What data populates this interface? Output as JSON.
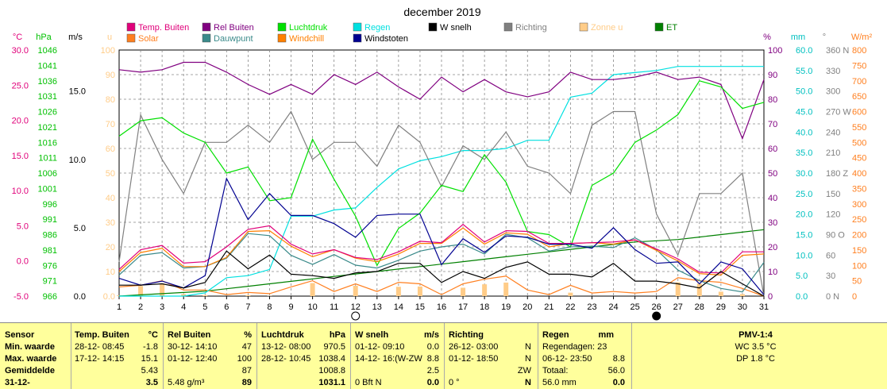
{
  "title": "december 2019",
  "colors": {
    "temp": "#e0007a",
    "rh": "#800080",
    "pressure": "#00e000",
    "rain": "#00e0e0",
    "wind": "#000000",
    "direction": "#808080",
    "sun": "#ffcc88",
    "et": "#008000",
    "solar": "#ff7f1f",
    "dewpoint": "#3a8a8a",
    "windchill": "#ff7f00",
    "gust": "#000090"
  },
  "legend": [
    {
      "label": "Temp. Buiten",
      "color": "#e0007a"
    },
    {
      "label": "Rel Buiten",
      "color": "#800080"
    },
    {
      "label": "Luchtdruk",
      "color": "#00e000"
    },
    {
      "label": "Regen",
      "color": "#00e0e0"
    },
    {
      "label": "W snelh",
      "color": "#000000"
    },
    {
      "label": "Richting",
      "color": "#808080"
    },
    {
      "label": "Zonne u",
      "color": "#ffcc88"
    },
    {
      "label": "ET",
      "color": "#008000"
    },
    {
      "label": "Solar",
      "color": "#ff7f1f"
    },
    {
      "label": "Dauwpunt",
      "color": "#3a8a8a"
    },
    {
      "label": "Windchill",
      "color": "#ff7f00"
    },
    {
      "label": "Windstoten",
      "color": "#000090"
    }
  ],
  "axes": {
    "temp": {
      "unit": "°C",
      "ticks": [
        "30.0",
        "25.0",
        "20.0",
        "15.0",
        "10.0",
        "5.0",
        "0.0",
        "-5.0"
      ]
    },
    "pressure": {
      "unit": "hPa",
      "ticks": [
        "1046",
        "1041",
        "1036",
        "1031",
        "1026",
        "1021",
        "1016",
        "1011",
        "1006",
        "1001",
        "996",
        "991",
        "986",
        "981",
        "976",
        "971",
        "966"
      ]
    },
    "wind": {
      "unit": "m/s",
      "ticks": [
        "15.0",
        "10.0",
        "5.0",
        "0.0"
      ]
    },
    "sun": {
      "unit": "u",
      "ticks": [
        "100",
        "90",
        "80",
        "70",
        "60",
        "50",
        "40",
        "30",
        "20",
        "10",
        "0.0"
      ]
    },
    "rh": {
      "unit": "%",
      "ticks": [
        "100",
        "90",
        "80",
        "70",
        "60",
        "50",
        "40",
        "30",
        "20",
        "10",
        "0"
      ]
    },
    "rain": {
      "unit": "mm",
      "ticks": [
        "60.0",
        "55.0",
        "50.0",
        "45.0",
        "40.0",
        "35.0",
        "30.0",
        "25.0",
        "20.0",
        "15.0",
        "10.0",
        "5.0",
        "0.0"
      ]
    },
    "dir": {
      "unit": "°",
      "ticks": [
        "360 N",
        "330",
        "300",
        "270 W",
        "240",
        "210",
        "180 Z",
        "150",
        "120",
        "90 O",
        "60",
        "30",
        "0 N"
      ]
    },
    "solar": {
      "unit": "W/m²",
      "ticks": [
        "800",
        "750",
        "700",
        "650",
        "600",
        "550",
        "500",
        "450",
        "400",
        "350",
        "300",
        "250",
        "200",
        "150",
        "100",
        "50",
        "0"
      ]
    }
  },
  "chart_data": {
    "type": "line",
    "title": "december 2019",
    "x": [
      1,
      2,
      3,
      4,
      5,
      6,
      7,
      8,
      9,
      10,
      11,
      12,
      13,
      14,
      15,
      16,
      17,
      18,
      19,
      20,
      21,
      22,
      23,
      24,
      25,
      26,
      27,
      28,
      29,
      30,
      31
    ],
    "xlim": [
      1,
      31
    ],
    "moon_phases": [
      {
        "day": 12,
        "phase": "full"
      },
      {
        "day": 26,
        "phase": "new"
      }
    ],
    "series": [
      {
        "name": "Temp. Buiten",
        "axis": "temp",
        "ylim": [
          -5,
          30
        ],
        "values": [
          -1.2,
          1.6,
          2.2,
          -0.3,
          -0.1,
          2.0,
          4.5,
          5.0,
          2.4,
          1.0,
          1.6,
          0.5,
          0.2,
          1.3,
          2.8,
          2.6,
          5.2,
          2.7,
          4.3,
          4.2,
          2.5,
          2.5,
          2.6,
          2.7,
          3.0,
          1.7,
          0.3,
          -1.6,
          -1.7,
          1.3,
          1.3
        ]
      },
      {
        "name": "Rel Buiten",
        "axis": "rh",
        "ylim": [
          0,
          100
        ],
        "values": [
          92,
          91,
          92,
          95,
          95,
          91,
          86,
          82,
          86,
          82,
          90,
          86,
          91,
          85,
          80,
          89,
          83,
          88,
          83,
          81,
          83,
          91,
          88,
          88,
          89,
          91,
          88,
          89,
          86,
          64,
          88
        ]
      },
      {
        "name": "Luchtdruk",
        "axis": "pressure",
        "ylim": [
          966,
          1046
        ],
        "values": [
          1018,
          1023,
          1024,
          1019,
          1016,
          1006,
          1008,
          997,
          998,
          1017,
          1004,
          992,
          976,
          988,
          993,
          1002,
          1000,
          1012,
          1003,
          987,
          986,
          982,
          1002,
          1006,
          1016,
          1020,
          1025,
          1036,
          1034,
          1027,
          1029
        ]
      },
      {
        "name": "Regen",
        "axis": "rain",
        "ylim": [
          0,
          60
        ],
        "values": [
          0,
          0,
          0,
          0,
          0.8,
          4.5,
          5.0,
          6.5,
          19.5,
          19.5,
          21.0,
          21.5,
          26.5,
          31.0,
          33.0,
          34.0,
          35.5,
          35.5,
          36.0,
          38.0,
          38.0,
          48.5,
          49.5,
          54.0,
          54.5,
          55.0,
          56.0,
          56.0,
          56.0,
          56.0,
          56.0
        ]
      },
      {
        "name": "W snelh",
        "axis": "wind",
        "ylim": [
          0,
          18
        ],
        "values": [
          0.8,
          0.8,
          0.9,
          0.6,
          1.0,
          3.3,
          2.0,
          3.0,
          1.6,
          1.5,
          1.3,
          1.7,
          1.8,
          2.4,
          2.4,
          1.0,
          1.8,
          1.3,
          2.1,
          2.5,
          1.6,
          1.6,
          1.4,
          2.4,
          1.1,
          1.1,
          0.9,
          0.6,
          1.8,
          0.9,
          0.0
        ]
      },
      {
        "name": "Richting",
        "axis": "dir",
        "ylim": [
          0,
          360
        ],
        "values": [
          50,
          265,
          200,
          150,
          225,
          225,
          250,
          225,
          270,
          200,
          225,
          225,
          190,
          250,
          225,
          160,
          220,
          200,
          240,
          190,
          180,
          150,
          250,
          270,
          270,
          120,
          60,
          150,
          150,
          180,
          0
        ]
      },
      {
        "name": "Zonne u",
        "axis": "sun",
        "ylim": [
          0,
          100
        ],
        "style": "bar",
        "values": [
          0.3,
          4.1,
          5.2,
          0.8,
          0.4,
          0,
          0.4,
          0.1,
          0,
          5.3,
          0,
          4.2,
          0,
          3.8,
          3.9,
          0,
          3.4,
          4.8,
          5.5,
          0,
          0,
          1.4,
          0,
          0,
          0,
          0,
          5.6,
          5.1,
          1.8,
          0.8,
          0
        ]
      },
      {
        "name": "ET",
        "axis": "sun",
        "ylim": [
          0,
          100
        ],
        "values": [
          0,
          0.5,
          1.0,
          1.5,
          2,
          3,
          4,
          5,
          6,
          7,
          8,
          9,
          10,
          11,
          12,
          13,
          14,
          15,
          16,
          17,
          18,
          19,
          20,
          21,
          22,
          22.5,
          23,
          24,
          25,
          26,
          27
        ]
      },
      {
        "name": "Solar",
        "axis": "solar",
        "ylim": [
          0,
          800
        ],
        "values": [
          30,
          35,
          50,
          20,
          20,
          5,
          12,
          8,
          30,
          50,
          15,
          40,
          15,
          45,
          40,
          5,
          40,
          55,
          65,
          20,
          5,
          35,
          10,
          15,
          10,
          15,
          60,
          50,
          45,
          25,
          0
        ]
      },
      {
        "name": "Dauwpunt",
        "axis": "temp",
        "ylim": [
          -5,
          30
        ],
        "values": [
          -2.0,
          0.8,
          1.2,
          -1.0,
          -0.8,
          0.4,
          3.9,
          3.6,
          0.8,
          -0.5,
          0.9,
          -0.6,
          -1.0,
          0.1,
          1.4,
          2.0,
          2.4,
          1.0,
          3.8,
          3.3,
          1.4,
          2.0,
          2.1,
          1.9,
          3.3,
          1.6,
          -1.3,
          -2.8,
          -3.9,
          -4.4,
          -0.2
        ]
      },
      {
        "name": "Windchill",
        "axis": "temp",
        "ylim": [
          -5,
          30
        ],
        "values": [
          -1.5,
          1.2,
          1.8,
          -0.8,
          -0.8,
          0.5,
          4.2,
          4.3,
          2.1,
          0.6,
          1.6,
          0.4,
          -0.1,
          1.0,
          2.5,
          2.5,
          4.7,
          2.4,
          4.0,
          3.8,
          2.0,
          2.5,
          2.6,
          2.4,
          3.0,
          1.5,
          0.0,
          -1.8,
          -2.0,
          0.8,
          1.0
        ]
      },
      {
        "name": "Windstoten",
        "axis": "wind",
        "ylim": [
          0,
          18
        ],
        "values": [
          1.3,
          0.8,
          1.1,
          0.6,
          1.5,
          8.6,
          5.6,
          7.5,
          5.9,
          5.9,
          5.3,
          4.3,
          5.9,
          6.0,
          6.0,
          2.3,
          4.2,
          3.2,
          4.4,
          4.3,
          3.8,
          3.8,
          3.5,
          5.0,
          3.4,
          2.4,
          2.5,
          0.9,
          2.5,
          2.0,
          0.1
        ]
      }
    ]
  },
  "stats": {
    "headers": {
      "sensor": "Sensor",
      "temp": "Temp. Buiten",
      "temp_unit": "°C",
      "rh": "Rel Buiten",
      "rh_unit": "%",
      "press": "Luchtdruk",
      "press_unit": "hPa",
      "wind": "W snelh",
      "wind_unit": "m/s",
      "dir": "Richting",
      "rain": "Regen",
      "rain_unit": "mm",
      "pmv": "PMV-1:4"
    },
    "row_labels": [
      "Min. waarde",
      "Max. waarde",
      "Gemiddelde",
      "31-12-"
    ],
    "temp": {
      "min_dt": "28-12- 08:45",
      "min": "-1.8",
      "max_dt": "17-12- 14:15",
      "max": "15.1",
      "avg": "5.43",
      "last": "3.5"
    },
    "rh": {
      "min_dt": "30-12- 14:10",
      "min": "47",
      "max_dt": "01-12- 12:40",
      "max": "100",
      "avg": "87",
      "last_extra": "5.48 g/m³",
      "last": "89"
    },
    "press": {
      "min_dt": "13-12- 08:00",
      "min": "970.5",
      "max_dt": "28-12- 10:45",
      "max": "1038.4",
      "avg": "1008.8",
      "last": "1031.1"
    },
    "wind": {
      "min_dt": "01-12- 09:10",
      "min": "0.0",
      "max_dt": "14-12- 16:(W-ZW",
      "max": "8.8",
      "avg": "2.5",
      "last_extra": "0 Bft N",
      "last": "0.0"
    },
    "dir": {
      "min_dt": "26-12- 03:00",
      "min": "N",
      "max_dt": "01-12- 18:50",
      "max": "N",
      "avg": "ZW",
      "last_extra": "0 °",
      "last": "N"
    },
    "rain": {
      "line1": "Regendagen: 23",
      "max_dt": "06-12- 23:50",
      "max": "8.8",
      "total_label": "Totaal:",
      "total": "56.0",
      "last": "56.0 mm",
      "last_val": "0.0"
    },
    "pmv": {
      "wc": "WC 3.5 °C",
      "dp": "DP 1.8 °C"
    }
  }
}
